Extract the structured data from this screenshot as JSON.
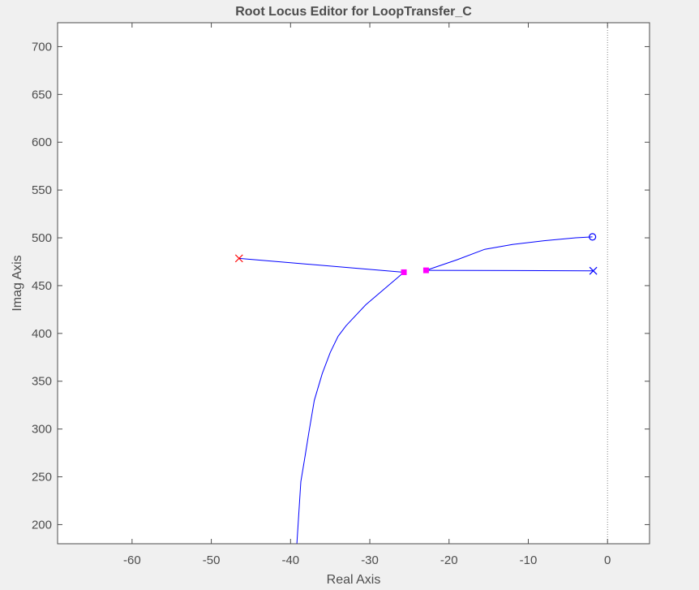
{
  "chart_data": {
    "type": "line",
    "title": "Root Locus Editor for LoopTransfer_C",
    "xlabel": "Real Axis",
    "ylabel": "Imag Axis",
    "xlim": [
      -69.4,
      5.3
    ],
    "ylim": [
      180,
      725
    ],
    "xticks": [
      -60,
      -50,
      -40,
      -30,
      -20,
      -10,
      0
    ],
    "yticks": [
      200,
      250,
      300,
      350,
      400,
      450,
      500,
      550,
      600,
      650,
      700
    ],
    "grid": false,
    "colors": {
      "background": "#f0f0f0",
      "plot_area": "#ffffff",
      "axes": "#4d4d4d",
      "locus": "#0000ff",
      "closed_loop_pole": "#ff00ff",
      "open_loop_pole_red": "#ff0000",
      "open_loop_pole_blue": "#0000ff",
      "zero": "#0000ff",
      "imag_axis_reference": "#808080"
    },
    "series": [
      {
        "id": "branch-1",
        "color": "#0000ff",
        "x": [
          -46.5,
          -25.7
        ],
        "y": [
          478.5,
          464
        ]
      },
      {
        "id": "branch-2",
        "color": "#0000ff",
        "x": [
          -25.7,
          -30.5,
          -33,
          -34,
          -35,
          -36,
          -37,
          -37.7,
          -38.2,
          -38.7,
          -39.2
        ],
        "y": [
          464,
          430,
          408,
          397,
          380,
          358,
          330,
          296,
          270,
          245,
          180
        ]
      },
      {
        "id": "branch-3",
        "color": "#0000ff",
        "x": [
          -22.9,
          -19,
          -15.5,
          -12,
          -8,
          -4,
          -1.9
        ],
        "y": [
          466,
          477,
          488,
          493,
          497,
          500,
          501
        ]
      },
      {
        "id": "branch-4",
        "color": "#0000ff",
        "x": [
          -22.9,
          -1.8
        ],
        "y": [
          466,
          465.5
        ]
      }
    ],
    "markers": [
      {
        "id": "open-loop-pole-red",
        "shape": "x",
        "color": "#ff0000",
        "x": -46.5,
        "y": 478.5
      },
      {
        "id": "open-loop-pole-blue",
        "shape": "x",
        "color": "#0000ff",
        "x": -1.8,
        "y": 465.5
      },
      {
        "id": "zero",
        "shape": "o",
        "color": "#0000ff",
        "x": -1.9,
        "y": 501
      },
      {
        "id": "closed-loop-pole-1",
        "shape": "square",
        "color": "#ff00ff",
        "x": -25.7,
        "y": 464
      },
      {
        "id": "closed-loop-pole-2",
        "shape": "square",
        "color": "#ff00ff",
        "x": -22.9,
        "y": 466
      }
    ],
    "reference_lines": [
      {
        "id": "imag-axis",
        "orientation": "vertical",
        "x": 0,
        "style": "dotted",
        "color": "#808080"
      }
    ]
  }
}
